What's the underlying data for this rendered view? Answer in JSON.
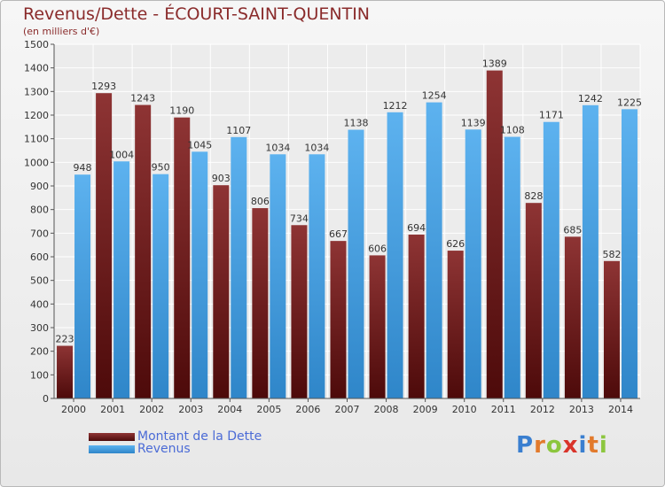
{
  "chart_data": {
    "type": "bar",
    "title": "Revenus/Dette - ÉCOURT-SAINT-QUENTIN",
    "subtitle": "(en milliers d'€)",
    "categories": [
      "2000",
      "2001",
      "2002",
      "2003",
      "2004",
      "2005",
      "2006",
      "2007",
      "2008",
      "2009",
      "2010",
      "2011",
      "2012",
      "2013",
      "2014"
    ],
    "series": [
      {
        "name": "Montant de la Dette",
        "color": "#7a1a1a",
        "values": [
          223,
          1293,
          1243,
          1190,
          903,
          806,
          734,
          667,
          606,
          694,
          626,
          1389,
          828,
          685,
          582
        ]
      },
      {
        "name": "Revenus",
        "color": "#4fa6e6",
        "values": [
          948,
          1004,
          950,
          1045,
          1107,
          1034,
          1034,
          1138,
          1212,
          1254,
          1139,
          1108,
          1171,
          1242,
          1225
        ]
      }
    ],
    "ylim": [
      0,
      1500
    ],
    "yticks": [
      0,
      100,
      200,
      300,
      400,
      500,
      600,
      700,
      800,
      900,
      1000,
      1100,
      1200,
      1300,
      1400,
      1500
    ],
    "grid": true,
    "legend_position": "bottom-left"
  },
  "logo": {
    "letters": [
      "P",
      "r",
      "o",
      "x",
      "i",
      "t",
      "i"
    ],
    "colors": [
      "#3a7fd0",
      "#e27a2c",
      "#8cc63e",
      "#d9342b",
      "#3a7fd0",
      "#e27a2c",
      "#8cc63e"
    ]
  }
}
